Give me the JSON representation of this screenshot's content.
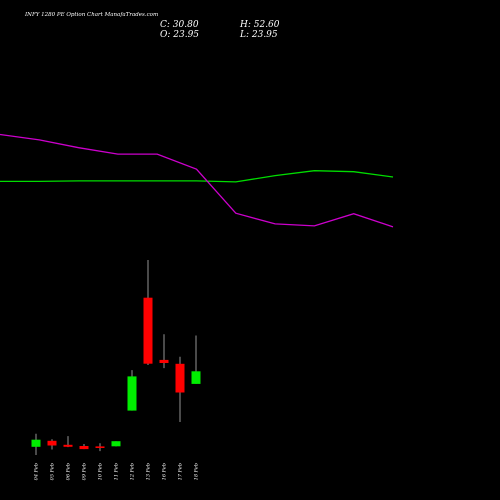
{
  "title": "INFY 1280  PE Option  Chart ManafaTrades.com",
  "ohlc": {
    "close": "C: 30.80",
    "open": "O: 23.95",
    "high": "H: 52.60",
    "low": "L: 23.95"
  },
  "colors": {
    "background": "#000000",
    "up": "#00ee00",
    "down": "#ff0000",
    "wick": "#bbbbbb",
    "line_green": "#00dd00",
    "line_magenta": "#cc00cc",
    "text": "#ffffff"
  },
  "chart_data": [
    {
      "type": "line",
      "grid": false,
      "x": [
        "04 Feb",
        "05 Feb",
        "06 Feb",
        "09 Feb",
        "10 Feb",
        "11 Feb",
        "12 Feb",
        "13 Feb",
        "16 Feb",
        "17 Feb",
        "18 Feb"
      ],
      "series": [
        {
          "color": "#00dd00",
          "values": [
            0.96,
            0.96,
            0.95,
            0.95,
            0.95,
            0.95,
            0.97,
            0.84,
            0.74,
            0.76,
            0.87
          ]
        },
        {
          "color": "#cc00cc",
          "values": [
            0.0,
            0.11,
            0.27,
            0.4,
            0.4,
            0.71,
            1.61,
            1.83,
            1.87,
            1.62,
            1.89
          ]
        }
      ],
      "ylim": [
        -0.4,
        2.2
      ]
    },
    {
      "type": "candlestick",
      "grid": false,
      "categories": [
        "04 Feb",
        "05 Feb",
        "06 Feb",
        "09 Feb",
        "10 Feb",
        "11 Feb",
        "12 Feb",
        "13 Feb",
        "16 Feb",
        "17 Feb",
        "18 Feb"
      ],
      "candles": [
        {
          "open": 2.5,
          "high": 5.8,
          "low": 0.4,
          "close": 4.3
        },
        {
          "open": 4.0,
          "high": 4.4,
          "low": 1.8,
          "close": 2.8
        },
        {
          "open": 3.0,
          "high": 5.2,
          "low": 2.4,
          "close": 2.5
        },
        {
          "open": 2.7,
          "high": 3.2,
          "low": 1.9,
          "close": 1.9
        },
        {
          "open": 2.6,
          "high": 3.4,
          "low": 1.4,
          "close": 2.2
        },
        {
          "open": 2.6,
          "high": 3.9,
          "low": 2.6,
          "close": 3.9
        },
        {
          "open": 11.7,
          "high": 22.0,
          "low": 11.7,
          "close": 20.4
        },
        {
          "open": 40.4,
          "high": 50.0,
          "low": 23.3,
          "close": 23.6
        },
        {
          "open": 24.6,
          "high": 31.1,
          "low": 22.5,
          "close": 23.8
        },
        {
          "open": 23.6,
          "high": 25.4,
          "low": 8.8,
          "close": 16.3
        },
        {
          "open": 18.5,
          "high": 30.8,
          "low": 18.5,
          "close": 21.7
        }
      ]
    }
  ]
}
